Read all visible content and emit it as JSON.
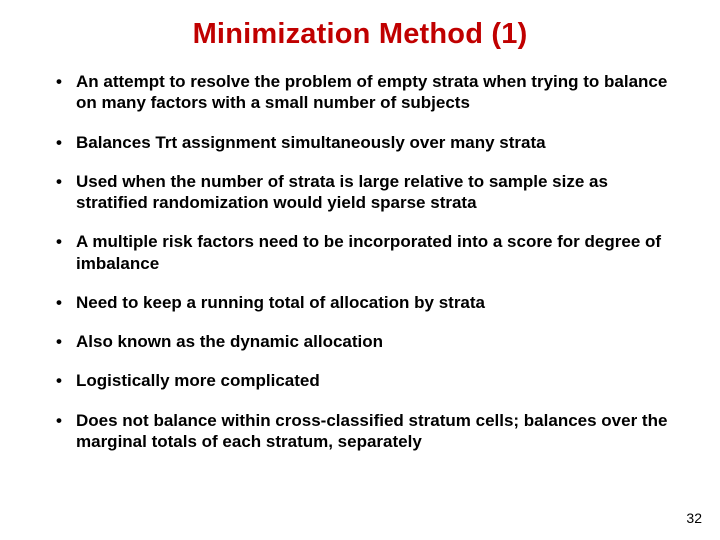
{
  "slide": {
    "title": "Minimization Method (1)",
    "title_color": "#c00000",
    "background_color": "#ffffff",
    "title_fontsize": 29,
    "bullet_fontsize": 17,
    "bullet_fontweight": "bold",
    "bullet_color": "#000000",
    "bullets": [
      "An attempt to resolve the problem of empty strata when trying to balance on many factors with a small number of subjects",
      "Balances Trt assignment simultaneously over many strata",
      "Used when the number of strata is large relative to sample size as stratified randomization would yield sparse strata",
      "A multiple risk factors need to be incorporated into a score for degree of imbalance",
      "Need to keep a running total of allocation by strata",
      "Also known as the dynamic allocation",
      "Logistically more complicated",
      "Does not balance within cross-classified stratum cells; balances over the marginal totals of each stratum, separately"
    ],
    "page_number": "32"
  }
}
